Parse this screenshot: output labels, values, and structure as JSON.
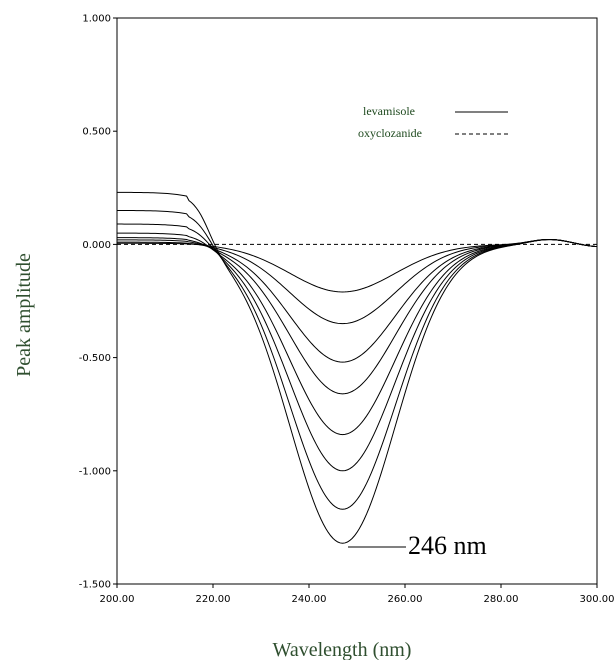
{
  "chart_data": {
    "type": "line",
    "title": "",
    "xlabel": "Wavelength (nm)",
    "ylabel": "Peak amplitude",
    "xlim": [
      200,
      300
    ],
    "ylim": [
      -1.5,
      1.0
    ],
    "x_ticks": [
      "200.00",
      "220.00",
      "240.00",
      "260.00",
      "280.00",
      "300.00"
    ],
    "y_ticks": [
      "1.000",
      "0.500",
      "0.000",
      "-0.500",
      "-1.000",
      "-1.500"
    ],
    "x_tick_values": [
      200,
      220,
      240,
      260,
      280,
      300
    ],
    "y_tick_values": [
      1.0,
      0.5,
      0.0,
      -0.5,
      -1.0,
      -1.5
    ],
    "grid": false,
    "legend_position": "top-right",
    "legend": [
      {
        "label": "levamisole",
        "style": "solid"
      },
      {
        "label": "oxyclozanide",
        "style": "dashed"
      }
    ],
    "annotation": {
      "text": "246 nm",
      "x": 247,
      "y": -1.32
    },
    "series": [
      {
        "name": "levamisole",
        "style": "solid",
        "baseline": 0.23,
        "min": -1.32
      },
      {
        "name": "levamisole",
        "style": "solid",
        "baseline": 0.15,
        "min": -1.17
      },
      {
        "name": "levamisole",
        "style": "solid",
        "baseline": 0.09,
        "min": -1.0
      },
      {
        "name": "levamisole",
        "style": "solid",
        "baseline": 0.05,
        "min": -0.84
      },
      {
        "name": "levamisole",
        "style": "solid",
        "baseline": 0.03,
        "min": -0.66
      },
      {
        "name": "levamisole",
        "style": "solid",
        "baseline": 0.02,
        "min": -0.52
      },
      {
        "name": "levamisole",
        "style": "solid",
        "baseline": 0.01,
        "min": -0.35
      },
      {
        "name": "levamisole",
        "style": "solid",
        "baseline": 0.005,
        "min": -0.21
      },
      {
        "name": "oxyclozanide",
        "style": "dashed",
        "baseline": 0.0,
        "min": 0.0
      }
    ]
  }
}
